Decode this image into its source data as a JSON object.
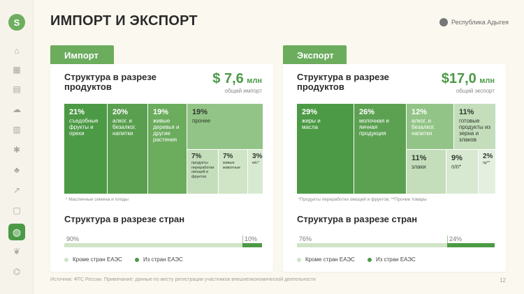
{
  "page": {
    "title": "ИМПОРТ И ЭКСПОРТ",
    "region": "Республика Адыгея",
    "footer": "Источник: ФТС России. Примечание: данные по месту регистрации участников внешнеэкономической деятельности",
    "page_number": "12",
    "logo_letter": "S"
  },
  "colors": {
    "dark": "#4c9a45",
    "mid": "#6bac5d",
    "light": "#93c487",
    "pale": "#c4ddbb",
    "paler": "#d8e9d1",
    "bg": "#fbf9ef"
  },
  "sidebar": {
    "icons": [
      "home-icon",
      "building-icon",
      "factory-icon",
      "weather-icon",
      "calendar-icon",
      "bug-icon",
      "agriculture-icon",
      "chart-icon",
      "document-icon",
      "globe-icon",
      "plant-icon",
      "bank-icon"
    ],
    "active": "globe-icon"
  },
  "import": {
    "tab": "Импорт",
    "card_title": "Структура в разрезе продуктов",
    "total": "$ 7,6",
    "total_unit": "млн",
    "total_caption": "общий импорт",
    "cells": [
      {
        "pct": "21%",
        "label": "съедобные фрукты и орехи"
      },
      {
        "pct": "20%",
        "label": "алког. и безалког. напитки"
      },
      {
        "pct": "19%",
        "label": "живые деревья и другие растения"
      },
      {
        "pct": "19%",
        "label": "прочее"
      },
      {
        "pct": "7%",
        "label": "продукты переработки овощей и фруктов"
      },
      {
        "pct": "7%",
        "label": "живые животные"
      },
      {
        "pct": "3%",
        "label": "м/с*"
      }
    ],
    "note": "* Масличные семена и плоды",
    "countries_title": "Структура в разрезе стран",
    "bar": {
      "non_eaeu": 90,
      "eaeu": 10,
      "non_eaeu_label": "90%",
      "eaeu_label": "10%"
    }
  },
  "export": {
    "tab": "Экспорт",
    "card_title": "Структура в разрезе продуктов",
    "total": "$17,0",
    "total_unit": "млн",
    "total_caption": "общий экспорт",
    "cells": [
      {
        "pct": "29%",
        "label": "жиры и масла"
      },
      {
        "pct": "26%",
        "label": "молочная и яичная продукция"
      },
      {
        "pct": "12%",
        "label": "алког. и безалког. напитки"
      },
      {
        "pct": "11%",
        "label": "готовые продукты из зерна и злаков"
      },
      {
        "pct": "11%",
        "label": "злаки"
      },
      {
        "pct": "9%",
        "label": "п/п*"
      },
      {
        "pct": "2%",
        "label": "пр**"
      }
    ],
    "note": "*Продукты переработки овощей и фруктов; **Прочие товары",
    "countries_title": "Структура в разрезе стран",
    "bar": {
      "non_eaeu": 76,
      "eaeu": 24,
      "non_eaeu_label": "76%",
      "eaeu_label": "24%"
    }
  },
  "legend": {
    "non_eaeu": "Кроме стран ЕАЭС",
    "eaeu": "Из стран ЕАЭС"
  }
}
